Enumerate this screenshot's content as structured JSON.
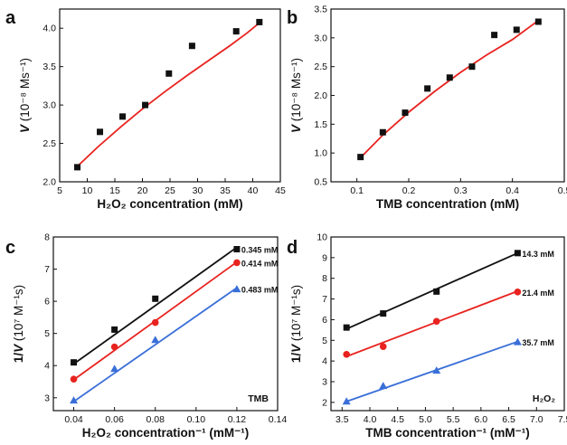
{
  "chart_data": [
    {
      "panel": "a",
      "type": "scatter",
      "xlabel": "H₂O₂ concentration (mM)",
      "ylabel_italic": "V",
      "ylabel_rest": " (10⁻⁸ Ms⁻¹)",
      "xlim": [
        5,
        45
      ],
      "ylim": [
        2.0,
        4.25
      ],
      "xticks": [
        5,
        10,
        15,
        20,
        25,
        30,
        35,
        40,
        45
      ],
      "yticks": [
        2.0,
        2.5,
        3.0,
        3.5,
        4.0
      ],
      "yprec": 1,
      "series": [
        {
          "points": [
            [
              8.2,
              2.19
            ],
            [
              12.3,
              2.65
            ],
            [
              16.4,
              2.85
            ],
            [
              20.5,
              3.0
            ],
            [
              24.8,
              3.41
            ],
            [
              29.0,
              3.77
            ],
            [
              37.0,
              3.96
            ],
            [
              41.2,
              4.08
            ]
          ],
          "marker": "square",
          "marker_color": "#111111",
          "fit": [
            [
              8.2,
              2.2
            ],
            [
              12,
              2.46
            ],
            [
              16,
              2.71
            ],
            [
              20,
              2.95
            ],
            [
              24,
              3.17
            ],
            [
              28,
              3.38
            ],
            [
              32,
              3.58
            ],
            [
              36,
              3.78
            ],
            [
              39,
              3.94
            ],
            [
              41.2,
              4.07
            ]
          ],
          "fit_color": "#e8231f"
        }
      ]
    },
    {
      "panel": "b",
      "type": "scatter",
      "xlabel": "TMB concentration (mM)",
      "ylabel_italic": "V",
      "ylabel_rest": " (10⁻⁸ Ms⁻¹)",
      "xlim": [
        0.05,
        0.5
      ],
      "ylim": [
        0.5,
        3.5
      ],
      "xticks": [
        0.1,
        0.2,
        0.3,
        0.4,
        0.5
      ],
      "yticks": [
        0.5,
        1.0,
        1.5,
        2.0,
        2.5,
        3.0,
        3.5
      ],
      "yprec": 1,
      "series": [
        {
          "points": [
            [
              0.107,
              0.93
            ],
            [
              0.15,
              1.36
            ],
            [
              0.193,
              1.7
            ],
            [
              0.236,
              2.12
            ],
            [
              0.279,
              2.31
            ],
            [
              0.322,
              2.5
            ],
            [
              0.365,
              3.05
            ],
            [
              0.408,
              3.14
            ],
            [
              0.45,
              3.28
            ]
          ],
          "marker": "square",
          "marker_color": "#111111",
          "fit": [
            [
              0.107,
              0.92
            ],
            [
              0.15,
              1.31
            ],
            [
              0.2,
              1.71
            ],
            [
              0.25,
              2.07
            ],
            [
              0.3,
              2.4
            ],
            [
              0.35,
              2.7
            ],
            [
              0.4,
              2.97
            ],
            [
              0.45,
              3.3
            ]
          ],
          "fit_color": "#e8231f"
        }
      ]
    },
    {
      "panel": "c",
      "type": "scatter",
      "xlabel": "H₂O₂ concentration⁻¹ (mM⁻¹)",
      "ylabel_italic": "V",
      "ylabel_pre": "1/",
      "ylabel_rest": " (10⁷ M⁻¹s)",
      "xlim": [
        0.03,
        0.14
      ],
      "ylim": [
        2.6,
        8.0
      ],
      "xticks": [
        0.04,
        0.06,
        0.08,
        0.1,
        0.12,
        0.14
      ],
      "yticks": [
        3,
        4,
        5,
        6,
        7,
        8
      ],
      "xprec": 2,
      "corner_label": "TMB",
      "series": [
        {
          "name": "0.345 mM",
          "points": [
            [
              0.04,
              4.1
            ],
            [
              0.06,
              5.12
            ],
            [
              0.08,
              6.08
            ],
            [
              0.12,
              7.62
            ]
          ],
          "marker": "square",
          "marker_color": "#111111",
          "fit": [
            [
              0.04,
              4.05
            ],
            [
              0.12,
              7.68
            ]
          ],
          "fit_color": "#111111"
        },
        {
          "name": "0.414 mM",
          "points": [
            [
              0.04,
              3.58
            ],
            [
              0.06,
              4.58
            ],
            [
              0.08,
              5.34
            ],
            [
              0.12,
              7.2
            ]
          ],
          "marker": "circle",
          "marker_color": "#e8231f",
          "fit": [
            [
              0.04,
              3.56
            ],
            [
              0.12,
              7.22
            ]
          ],
          "fit_color": "#e8231f"
        },
        {
          "name": "0.483 mM",
          "points": [
            [
              0.04,
              2.92
            ],
            [
              0.06,
              3.9
            ],
            [
              0.08,
              4.8
            ],
            [
              0.12,
              6.38
            ]
          ],
          "marker": "triangle",
          "marker_color": "#3a6fd8",
          "fit": [
            [
              0.04,
              2.88
            ],
            [
              0.12,
              6.42
            ]
          ],
          "fit_color": "#3a6fd8"
        }
      ]
    },
    {
      "panel": "d",
      "type": "scatter",
      "xlabel": "TMB concentration⁻¹ (mM⁻¹)",
      "ylabel_italic": "V",
      "ylabel_pre": "1/",
      "ylabel_rest": " (10⁷ M⁻¹s)",
      "xlim": [
        3.3,
        7.5
      ],
      "ylim": [
        1.6,
        10.0
      ],
      "xticks": [
        3.5,
        4.0,
        4.5,
        5.0,
        5.5,
        6.0,
        6.5,
        7.0,
        7.5
      ],
      "yticks": [
        2,
        3,
        4,
        5,
        6,
        7,
        8,
        9,
        10
      ],
      "xprec": 1,
      "corner_label": "H₂O₂",
      "series": [
        {
          "name": "14.3 mM",
          "points": [
            [
              3.58,
              5.62
            ],
            [
              4.24,
              6.3
            ],
            [
              5.2,
              7.36
            ],
            [
              6.66,
              9.22
            ]
          ],
          "marker": "square",
          "marker_color": "#111111",
          "fit": [
            [
              3.58,
              5.55
            ],
            [
              6.66,
              9.22
            ]
          ],
          "fit_color": "#111111"
        },
        {
          "name": "21.4 mM",
          "points": [
            [
              3.58,
              4.32
            ],
            [
              4.24,
              4.7
            ],
            [
              5.2,
              5.92
            ],
            [
              6.66,
              7.34
            ]
          ],
          "marker": "circle",
          "marker_color": "#e8231f",
          "fit": [
            [
              3.58,
              4.22
            ],
            [
              6.66,
              7.38
            ]
          ],
          "fit_color": "#e8231f"
        },
        {
          "name": "35.7 mM",
          "points": [
            [
              3.58,
              2.05
            ],
            [
              4.24,
              2.8
            ],
            [
              5.2,
              3.54
            ],
            [
              6.66,
              4.92
            ]
          ],
          "marker": "triangle",
          "marker_color": "#3a6fd8",
          "fit": [
            [
              3.58,
              2.04
            ],
            [
              6.66,
              4.94
            ]
          ],
          "fit_color": "#3a6fd8"
        }
      ]
    }
  ]
}
